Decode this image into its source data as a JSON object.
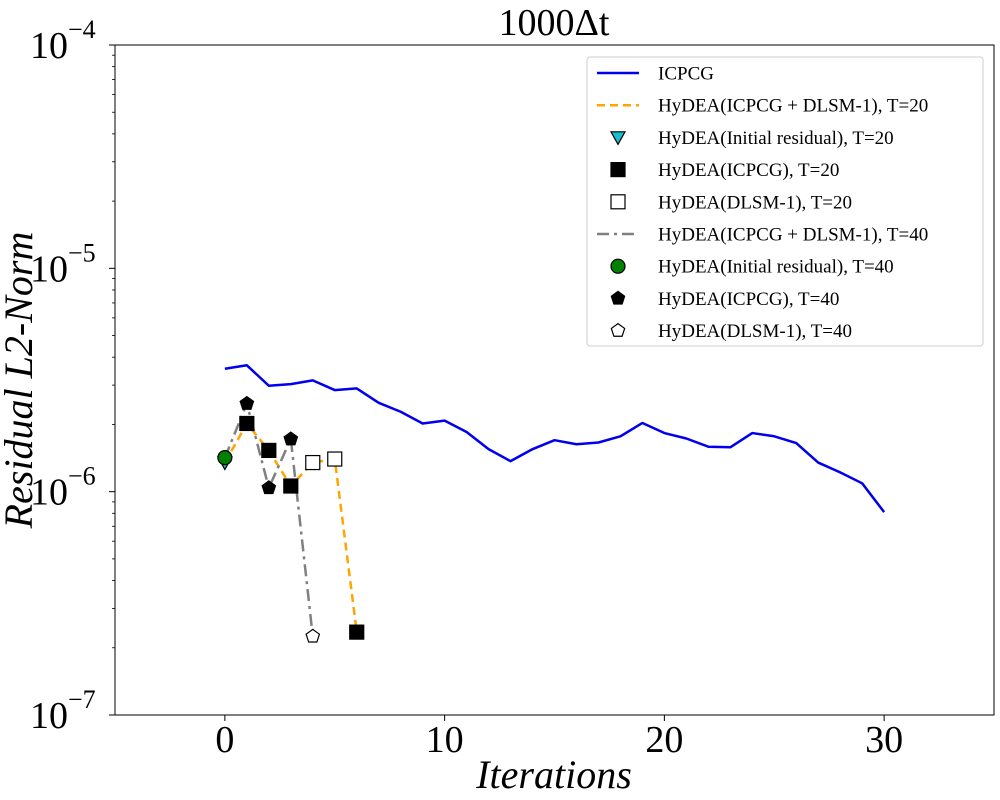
{
  "chart_data": {
    "type": "line",
    "title": "1000Δt",
    "xlabel": "Iterations",
    "ylabel": "Residual L2-Norm",
    "y_scale": "log",
    "xlim": [
      -5,
      35
    ],
    "ylim": [
      1e-07,
      0.0001
    ],
    "x_ticks": [
      {
        "value": 0,
        "label": "0"
      },
      {
        "value": 10,
        "label": "10"
      },
      {
        "value": 20,
        "label": "20"
      },
      {
        "value": 30,
        "label": "30"
      }
    ],
    "y_ticks": [
      {
        "value": 1e-07,
        "base": "10",
        "exp": "−7"
      },
      {
        "value": 1e-06,
        "base": "10",
        "exp": "−6"
      },
      {
        "value": 1e-05,
        "base": "10",
        "exp": "−5"
      },
      {
        "value": 0.0001,
        "base": "10",
        "exp": "−4"
      }
    ],
    "legend_position": "top-right",
    "series": [
      {
        "name": "ICPCG",
        "style": "line",
        "color": "#0000ee",
        "dash": "",
        "x": [
          0,
          1,
          2,
          3,
          4,
          5,
          6,
          7,
          8,
          9,
          10,
          11,
          12,
          13,
          14,
          15,
          16,
          17,
          18,
          19,
          20,
          21,
          22,
          23,
          24,
          25,
          26,
          27,
          28,
          29,
          30
        ],
        "y": [
          3.55e-06,
          3.68e-06,
          2.98e-06,
          3.03e-06,
          3.15e-06,
          2.85e-06,
          2.9e-06,
          2.5e-06,
          2.28e-06,
          2.02e-06,
          2.08e-06,
          1.85e-06,
          1.55e-06,
          1.37e-06,
          1.55e-06,
          1.7e-06,
          1.63e-06,
          1.66e-06,
          1.77e-06,
          2.03e-06,
          1.83e-06,
          1.73e-06,
          1.59e-06,
          1.58e-06,
          1.83e-06,
          1.77e-06,
          1.65e-06,
          1.35e-06,
          1.22e-06,
          1.09e-06,
          8.1e-07
        ]
      },
      {
        "name": "HyDEA(ICPCG + DLSM-1), T=20",
        "style": "line",
        "color": "#ffa500",
        "dash": "8,5",
        "x": [
          0,
          1,
          2,
          3,
          4,
          5,
          6
        ],
        "y": [
          1.35e-06,
          2.02e-06,
          1.53e-06,
          1.06e-06,
          1.35e-06,
          1.4e-06,
          2.35e-07
        ]
      },
      {
        "name": "HyDEA(Initial residual), T=20",
        "style": "marker",
        "marker": "triangle-down",
        "color": "#17becf",
        "x": [
          0
        ],
        "y": [
          1.35e-06
        ]
      },
      {
        "name": "HyDEA(ICPCG), T=20",
        "style": "marker",
        "marker": "square-filled",
        "color": "#000000",
        "x": [
          1,
          2,
          3,
          6
        ],
        "y": [
          2.02e-06,
          1.53e-06,
          1.06e-06,
          2.35e-07
        ]
      },
      {
        "name": "HyDEA(DLSM-1), T=20",
        "style": "marker",
        "marker": "square-open",
        "color": "#ffffff",
        "x": [
          4,
          5
        ],
        "y": [
          1.35e-06,
          1.4e-06
        ]
      },
      {
        "name": "HyDEA(ICPCG + DLSM-1), T=40",
        "style": "line",
        "color": "#808080",
        "dash": "12,5,3,5",
        "x": [
          0,
          1,
          2,
          3,
          4
        ],
        "y": [
          1.42e-06,
          2.48e-06,
          1.04e-06,
          1.72e-06,
          2.25e-07
        ]
      },
      {
        "name": "HyDEA(Initial residual), T=40",
        "style": "marker",
        "marker": "circle",
        "color": "#008000",
        "x": [
          0
        ],
        "y": [
          1.42e-06
        ]
      },
      {
        "name": "HyDEA(ICPCG), T=40",
        "style": "marker",
        "marker": "pentagon-filled",
        "color": "#000000",
        "x": [
          1,
          2,
          3
        ],
        "y": [
          2.48e-06,
          1.04e-06,
          1.72e-06
        ]
      },
      {
        "name": "HyDEA(DLSM-1), T=40",
        "style": "marker",
        "marker": "pentagon-open",
        "color": "#ffffff",
        "x": [
          4
        ],
        "y": [
          2.25e-07
        ]
      }
    ]
  }
}
